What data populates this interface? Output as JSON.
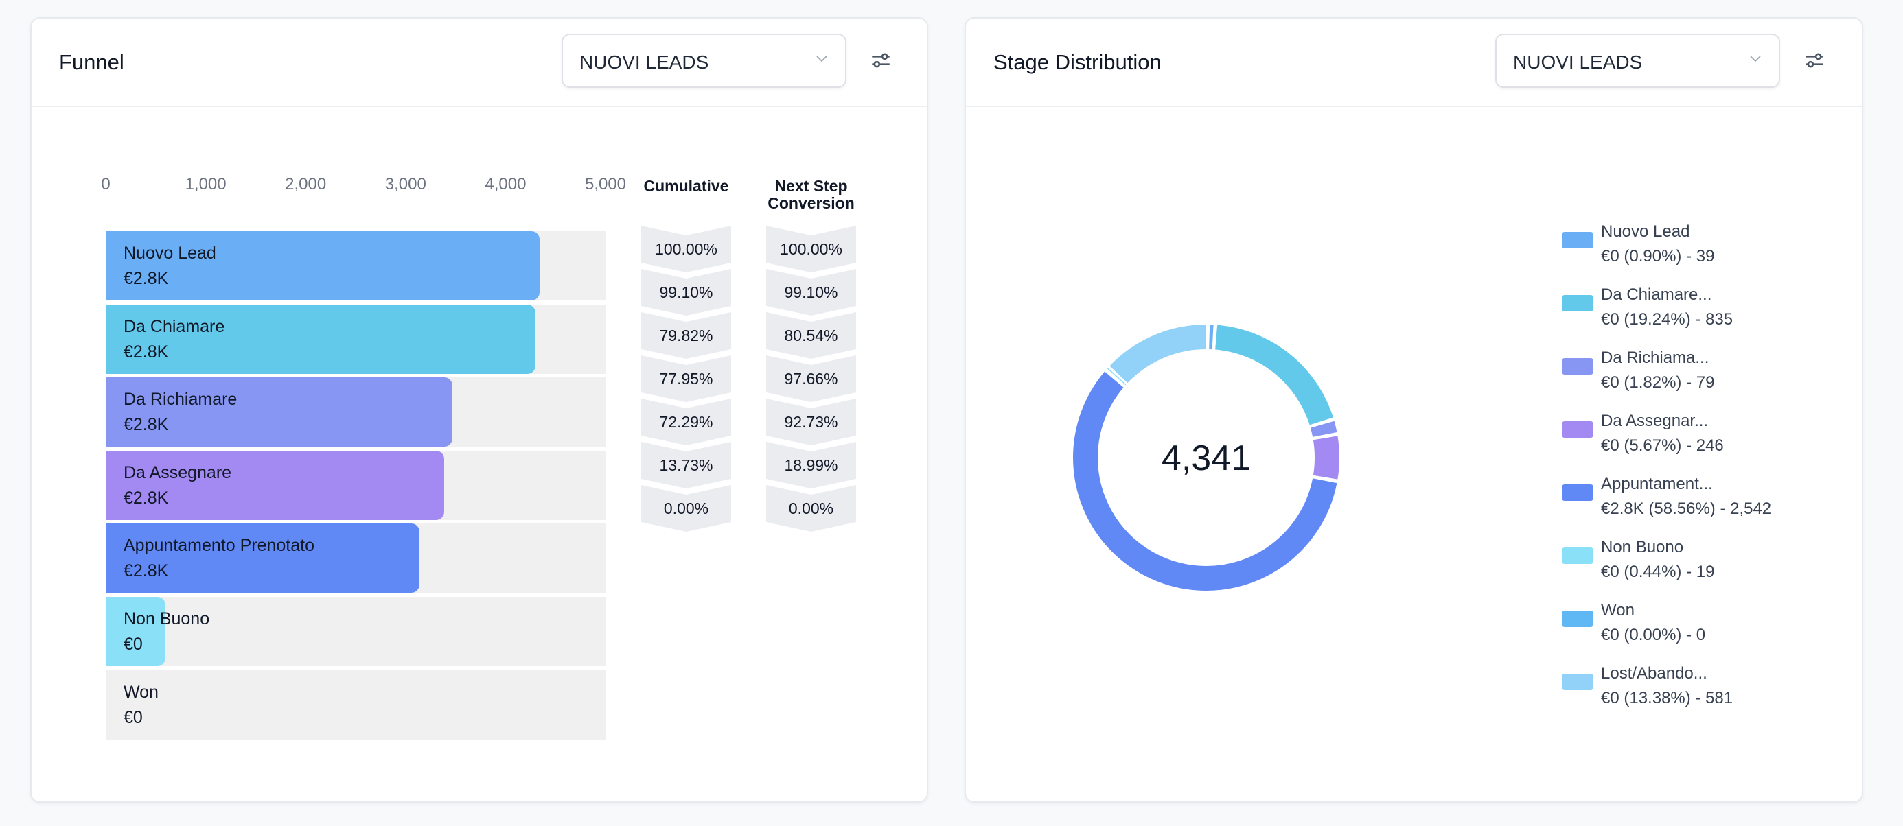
{
  "funnel": {
    "title": "Funnel",
    "dropdown": "NUOVI LEADS",
    "axis_ticks": [
      "0",
      "1,000",
      "2,000",
      "3,000",
      "4,000",
      "5,000"
    ],
    "cumulative_header": "Cumulative",
    "next_step_header": "Next Step Conversion",
    "stages": [
      {
        "label": "Nuovo Lead",
        "value": "€2.8K",
        "count": 4341,
        "color": "#6aaef5",
        "cumulative": "100.00%",
        "next": "100.00%"
      },
      {
        "label": "Da Chiamare",
        "value": "€2.8K",
        "count": 4302,
        "color": "#62c9ea",
        "cumulative": "99.10%",
        "next": "99.10%"
      },
      {
        "label": "Da Richiamare",
        "value": "€2.8K",
        "count": 3467,
        "color": "#8796f3",
        "cumulative": "79.82%",
        "next": "80.54%"
      },
      {
        "label": "Da Assegnare",
        "value": "€2.8K",
        "count": 3388,
        "color": "#a28af2",
        "cumulative": "77.95%",
        "next": "97.66%"
      },
      {
        "label": "Appuntamento Prenotato",
        "value": "€2.8K",
        "count": 3142,
        "color": "#6189f6",
        "cumulative": "72.29%",
        "next": "92.73%"
      },
      {
        "label": "Non Buono",
        "value": "€0",
        "count": 600,
        "color": "#8ae0f6",
        "cumulative": "13.73%",
        "next": "18.99%"
      },
      {
        "label": "Won",
        "value": "€0",
        "count": 0,
        "color": "#5fb8f4",
        "cumulative": "0.00%",
        "next": "0.00%"
      }
    ]
  },
  "distribution": {
    "title": "Stage Distribution",
    "dropdown": "NUOVI LEADS",
    "total": "4,341",
    "chart_data": {
      "type": "pie",
      "slices": [
        {
          "name": "Nuovo Lead",
          "detail": "€0 (0.90%) - 39",
          "pct": 0.9,
          "color": "#6aaef5"
        },
        {
          "name": "Da Chiamare...",
          "detail": "€0 (19.24%) - 835",
          "pct": 19.24,
          "color": "#62c9ea"
        },
        {
          "name": "Da Richiama...",
          "detail": "€0 (1.82%) - 79",
          "pct": 1.82,
          "color": "#8796f3"
        },
        {
          "name": "Da Assegnar...",
          "detail": "€0 (5.67%) - 246",
          "pct": 5.67,
          "color": "#a28af2"
        },
        {
          "name": "Appuntament...",
          "detail": "€2.8K (58.56%) - 2,542",
          "pct": 58.56,
          "color": "#6189f6"
        },
        {
          "name": "Non Buono",
          "detail": "€0 (0.44%) - 19",
          "pct": 0.44,
          "color": "#8ae0f6"
        },
        {
          "name": "Won",
          "detail": "€0 (0.00%) - 0",
          "pct": 0.0,
          "color": "#5fb8f4"
        },
        {
          "name": "Lost/Abando...",
          "detail": "€0 (13.38%) - 581",
          "pct": 13.38,
          "color": "#92d2f8"
        }
      ]
    }
  }
}
